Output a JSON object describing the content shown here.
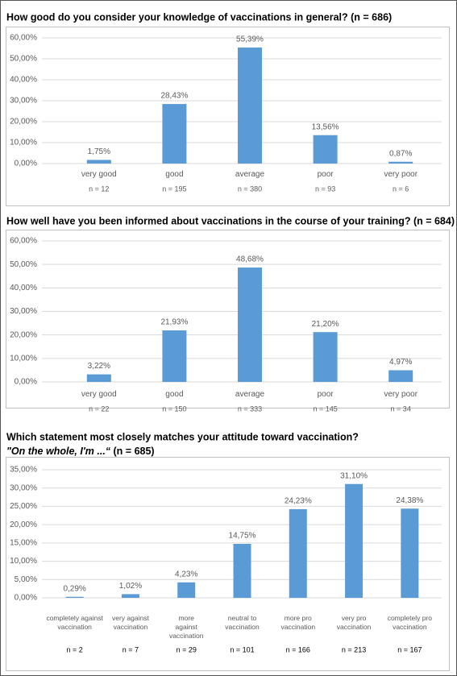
{
  "chart_data": [
    {
      "type": "bar",
      "title": "How good do you consider your knowledge of vaccinations in general? (n = 686)",
      "categories": [
        [
          "very good"
        ],
        [
          "good"
        ],
        [
          "average"
        ],
        [
          "poor"
        ],
        [
          "very poor"
        ]
      ],
      "values": [
        1.75,
        28.43,
        55.39,
        13.56,
        0.87
      ],
      "value_labels": [
        "1,75%",
        "28,43%",
        "55,39%",
        "13,56%",
        "0,87%"
      ],
      "sample_sizes": [
        "n = 12",
        "n = 195",
        "n = 380",
        "n = 93",
        "n = 6"
      ],
      "color": "#5b9bd5",
      "grid": true,
      "ylim": [
        0,
        60
      ],
      "yticks": [
        {
          "value": 0,
          "label": "0,00%"
        },
        {
          "value": 10,
          "label": "10,00%"
        },
        {
          "value": 20,
          "label": "20,00%"
        },
        {
          "value": 30,
          "label": "30,00%"
        },
        {
          "value": 40,
          "label": "40,00%"
        },
        {
          "value": 50,
          "label": "50,00%"
        },
        {
          "value": 60,
          "label": "60,00%"
        }
      ]
    },
    {
      "type": "bar",
      "title": "How well have you been informed about vaccinations in the course of your training? (n = 684)",
      "categories": [
        [
          "very good"
        ],
        [
          "good"
        ],
        [
          "average"
        ],
        [
          "poor"
        ],
        [
          "very poor"
        ]
      ],
      "values": [
        3.22,
        21.93,
        48.68,
        21.2,
        4.97
      ],
      "value_labels": [
        "3,22%",
        "21,93%",
        "48,68%",
        "21,20%",
        "4,97%"
      ],
      "sample_sizes": [
        "n = 22",
        "n = 150",
        "n = 333",
        "n = 145",
        "n = 34"
      ],
      "color": "#5b9bd5",
      "grid": true,
      "ylim": [
        0,
        60
      ],
      "yticks": [
        {
          "value": 0,
          "label": "0,00%"
        },
        {
          "value": 10,
          "label": "10,00%"
        },
        {
          "value": 20,
          "label": "20,00%"
        },
        {
          "value": 30,
          "label": "30,00%"
        },
        {
          "value": 40,
          "label": "40,00%"
        },
        {
          "value": 50,
          "label": "50,00%"
        },
        {
          "value": 60,
          "label": "60,00%"
        }
      ]
    },
    {
      "type": "bar",
      "title": "Which statement most closely matches your attitude toward vaccination?",
      "subtitle": [
        "\"On the whole, I'm ...“",
        " (n = 685)"
      ],
      "categories": [
        [
          "completely against",
          "vaccination"
        ],
        [
          "very against",
          "vaccination"
        ],
        [
          "more",
          "against",
          "vaccination"
        ],
        [
          "neutral to",
          "vaccination"
        ],
        [
          "more pro",
          "vaccination"
        ],
        [
          "very pro",
          "vaccination"
        ],
        [
          "completely pro",
          "vaccination"
        ]
      ],
      "values": [
        0.29,
        1.02,
        4.23,
        14.75,
        24.23,
        31.1,
        24.38
      ],
      "value_labels": [
        "0,29%",
        "1,02%",
        "4,23%",
        "14,75%",
        "24,23%",
        "31,10%",
        "24,38%"
      ],
      "sample_sizes": [
        "n = 2",
        "n = 7",
        "n = 29",
        "n = 101",
        "n = 166",
        "n = 213",
        "n = 167"
      ],
      "color": "#5b9bd5",
      "grid": true,
      "ylim": [
        0,
        35
      ],
      "yticks": [
        {
          "value": 0,
          "label": "0,00%"
        },
        {
          "value": 5,
          "label": "5,00%"
        },
        {
          "value": 10,
          "label": "10,00%"
        },
        {
          "value": 15,
          "label": "15,00%"
        },
        {
          "value": 20,
          "label": "20,00%"
        },
        {
          "value": 25,
          "label": "25,00%"
        },
        {
          "value": 30,
          "label": "30,00%"
        },
        {
          "value": 35,
          "label": "35,00%"
        }
      ]
    }
  ]
}
